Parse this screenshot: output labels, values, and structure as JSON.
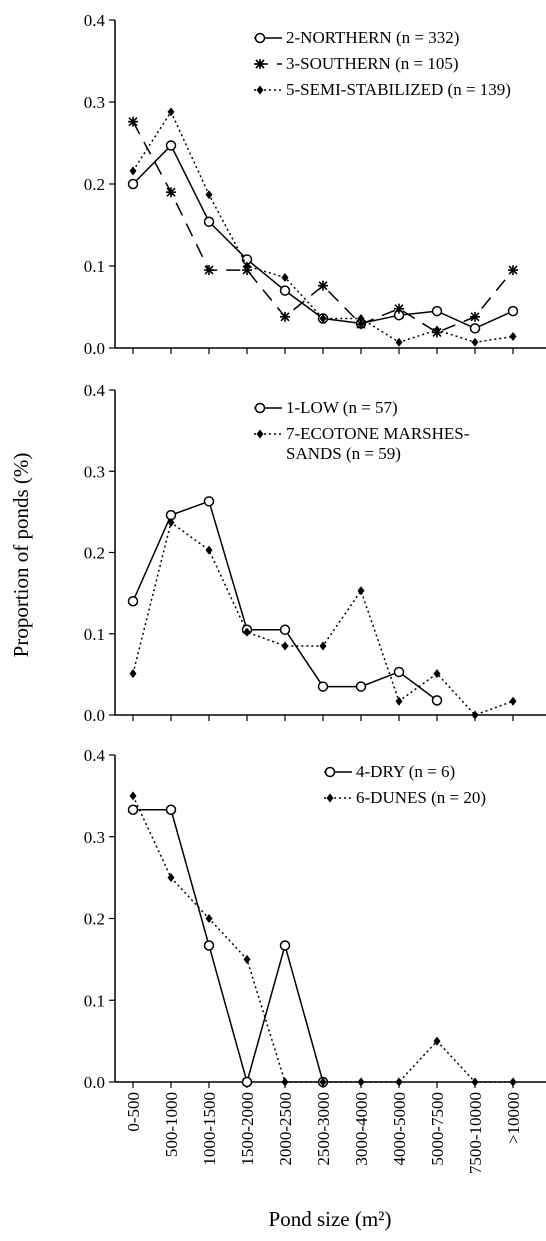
{
  "chart_data": [
    {
      "type": "line",
      "ylim": [
        0,
        0.4
      ],
      "yticks": [
        {
          "value": 0,
          "label": "0.0"
        },
        0.1,
        0.2,
        0.3,
        0.4
      ],
      "series": [
        {
          "name": "2-NORTHERN (n = 332)",
          "color": "#000000",
          "dash": "solid",
          "marker": "circle-open",
          "values": [
            0.2,
            0.247,
            0.154,
            0.108,
            0.07,
            0.036,
            0.03,
            0.04,
            0.045,
            0.024,
            0.045
          ]
        },
        {
          "name": "3-SOUTHERN (n = 105)",
          "color": "#000000",
          "dash": "dashed",
          "marker": "star",
          "values": [
            0.276,
            0.19,
            0.095,
            0.095,
            0.038,
            0.076,
            0.029,
            0.048,
            0.019,
            0.038,
            0.095
          ]
        },
        {
          "name": "5-SEMI-STABILIZED (n = 139)",
          "color": "#000000",
          "dash": "dotted",
          "marker": "diamond",
          "values": [
            0.216,
            0.288,
            0.187,
            0.1,
            0.086,
            0.036,
            0.036,
            0.007,
            0.022,
            0.007,
            0.014
          ]
        }
      ]
    },
    {
      "type": "line",
      "ylim": [
        0,
        0.4
      ],
      "y_label": "Proportion of ponds (%)",
      "yticks": [
        {
          "value": 0,
          "label": "0.0"
        },
        0.1,
        0.2,
        0.3,
        0.4
      ],
      "series": [
        {
          "name": "1-LOW (n = 57)",
          "color": "#000000",
          "dash": "solid",
          "marker": "circle-open",
          "values": [
            0.14,
            0.246,
            0.263,
            0.105,
            0.105,
            0.035,
            0.035,
            0.053,
            0.018,
            null,
            null
          ]
        },
        {
          "name": "7-ECOTONE MARSHES-SANDS (n = 59)",
          "color": "#000000",
          "dash": "dotted",
          "marker": "diamond",
          "values": [
            0.051,
            0.237,
            0.203,
            0.102,
            0.085,
            0.085,
            0.153,
            0.017,
            0.051,
            0,
            0.017
          ]
        }
      ]
    },
    {
      "type": "line",
      "ylim": [
        0,
        0.4
      ],
      "x_label": "Pond size (m²)",
      "categories": [
        "0-500",
        "500-1000",
        "1000-1500",
        "1500-2000",
        "2000-2500",
        "2500-3000",
        "3000-4000",
        "4000-5000",
        "5000-7500",
        "7500-10000",
        ">10000"
      ],
      "yticks": [
        {
          "value": 0,
          "label": "0.0"
        },
        0.1,
        0.2,
        0.3,
        0.4
      ],
      "series": [
        {
          "name": "4-DRY (n = 6)",
          "color": "#000000",
          "dash": "solid",
          "marker": "circle-open",
          "values": [
            0.333,
            0.333,
            0.167,
            0,
            0.167,
            0,
            null,
            null,
            null,
            null,
            null
          ]
        },
        {
          "name": "6-DUNES (n = 20)",
          "color": "#000000",
          "dash": "dotted",
          "marker": "diamond",
          "values": [
            0.35,
            0.25,
            0.2,
            0.15,
            0,
            0,
            0,
            0,
            0.05,
            0,
            0
          ]
        }
      ]
    }
  ]
}
